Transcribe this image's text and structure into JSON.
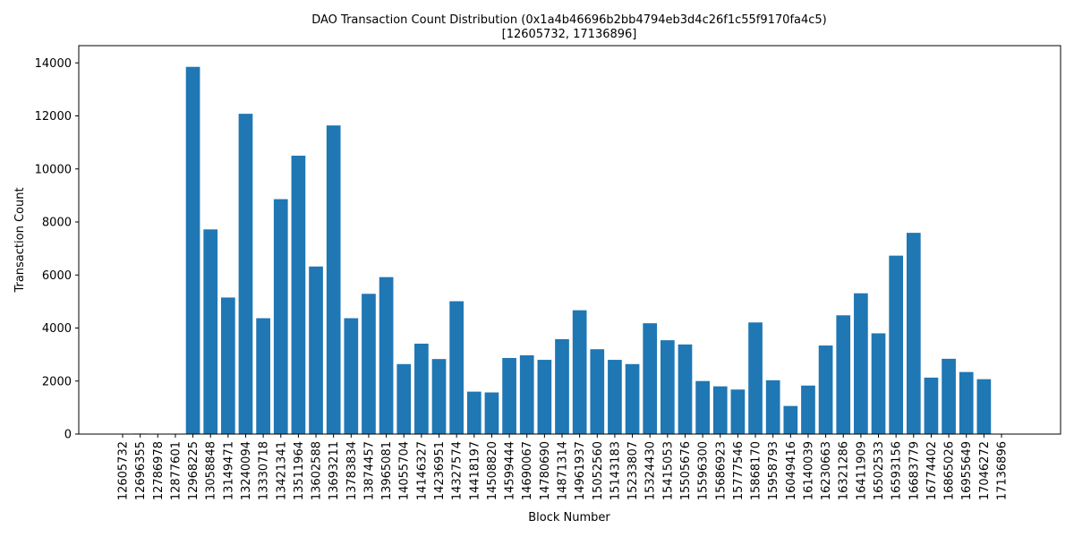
{
  "chart_data": {
    "type": "bar",
    "title_line1": "DAO Transaction Count Distribution (0x1a4b46696b2bb4794eb3d4c26f1c55f9170fa4c5)",
    "title_line2": "[12605732, 17136896]",
    "xlabel": "Block Number",
    "ylabel": "Transaction Count",
    "ylim": [
      0,
      14650
    ],
    "yticks": [
      0,
      2000,
      4000,
      6000,
      8000,
      10000,
      12000,
      14000
    ],
    "ytick_labels": [
      "0",
      "2000",
      "4000",
      "6000",
      "8000",
      "10000",
      "12000",
      "14000"
    ],
    "categories": [
      "12605732",
      "12696355",
      "12786978",
      "12877601",
      "12968225",
      "13058848",
      "13149471",
      "13240094",
      "13330718",
      "13421341",
      "13511964",
      "13602588",
      "13693211",
      "13783834",
      "13874457",
      "13965081",
      "14055704",
      "14146327",
      "14236951",
      "14327574",
      "14418197",
      "14508820",
      "14599444",
      "14690067",
      "14780690",
      "14871314",
      "14961937",
      "15052560",
      "15143183",
      "15233807",
      "15324430",
      "15415053",
      "15505676",
      "15596300",
      "15686923",
      "15777546",
      "15868170",
      "15958793",
      "16049416",
      "16140039",
      "16230663",
      "16321286",
      "16411909",
      "16502533",
      "16593156",
      "16683779",
      "16774402",
      "16865026",
      "16955649",
      "17046272",
      "17136896"
    ],
    "values": [
      0,
      20,
      0,
      0,
      13850,
      7720,
      5150,
      12080,
      4370,
      8860,
      10500,
      6320,
      11640,
      4370,
      5290,
      5920,
      2640,
      3410,
      2830,
      5010,
      1600,
      1570,
      2870,
      2970,
      2800,
      3580,
      4670,
      3200,
      2800,
      2640,
      4180,
      3540,
      3380,
      2000,
      1800,
      1680,
      4210,
      2030,
      1060,
      1830,
      3340,
      4480,
      5310,
      3800,
      6730,
      7590,
      2130,
      2840,
      2340,
      2070,
      0
    ],
    "color": "#1f77b4"
  }
}
